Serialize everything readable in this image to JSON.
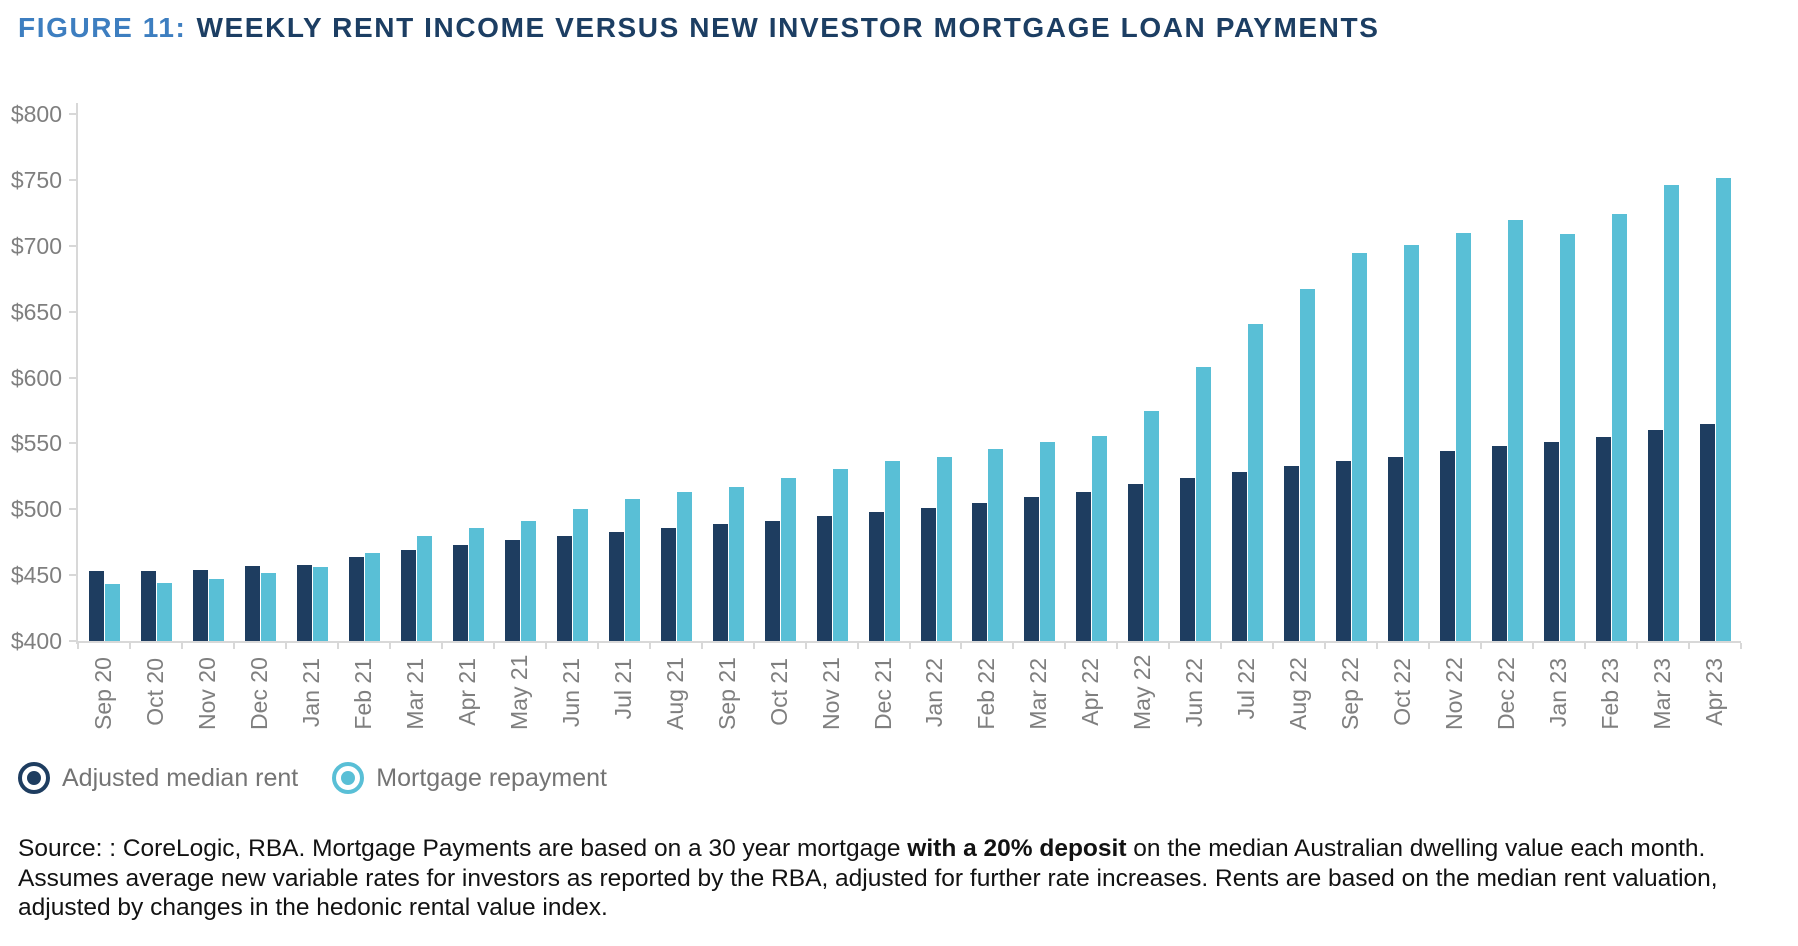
{
  "figure": {
    "label": "FIGURE 11:",
    "title": "WEEKLY RENT INCOME VERSUS NEW INVESTOR MORTGAGE LOAN PAYMENTS"
  },
  "colors": {
    "accent_blue": "#3D7EC0",
    "title_navy": "#1C3E63",
    "rent_navy": "#1E3D60",
    "mortgage_blue": "#59BFD6",
    "axis_text": "#7F7F7F",
    "axis_line": "#D8D8D8"
  },
  "chart_data": {
    "type": "bar",
    "title": "Weekly rent income versus new investor mortgage loan payments",
    "xlabel": "",
    "ylabel": "",
    "ylim": [
      400,
      800
    ],
    "ytick_step": 50,
    "ytick_prefix": "$",
    "grid": false,
    "legend_position": "bottom-left",
    "categories": [
      "Sep 20",
      "Oct 20",
      "Nov 20",
      "Dec 20",
      "Jan 21",
      "Feb 21",
      "Mar 21",
      "Apr 21",
      "May 21",
      "Jun 21",
      "Jul 21",
      "Aug 21",
      "Sep 21",
      "Oct 21",
      "Nov 21",
      "Dec 21",
      "Jan 22",
      "Feb 22",
      "Mar 22",
      "Apr 22",
      "May 22",
      "Jun 22",
      "Jul 22",
      "Aug 22",
      "Sep 22",
      "Oct 22",
      "Nov 22",
      "Dec 22",
      "Jan 23",
      "Feb 23",
      "Mar 23",
      "Apr 23"
    ],
    "series": [
      {
        "name": "Adjusted median rent",
        "color": "#1E3D60",
        "values": [
          453,
          453,
          454,
          457,
          458,
          464,
          469,
          473,
          477,
          480,
          483,
          486,
          489,
          491,
          495,
          498,
          501,
          505,
          509,
          513,
          519,
          524,
          528,
          533,
          537,
          540,
          544,
          548,
          551,
          555,
          560,
          565
        ]
      },
      {
        "name": "Mortgage repayment",
        "color": "#59BFD6",
        "values": [
          443,
          444,
          447,
          452,
          456,
          467,
          480,
          486,
          491,
          500,
          508,
          513,
          517,
          524,
          531,
          537,
          540,
          546,
          551,
          556,
          575,
          608,
          641,
          667,
          695,
          701,
          710,
          720,
          709,
          724,
          746,
          752
        ]
      }
    ]
  },
  "legend": {
    "items": [
      {
        "label": "Adjusted median rent",
        "color": "#1E3D60"
      },
      {
        "label": "Mortgage repayment",
        "color": "#59BFD6"
      }
    ]
  },
  "source": {
    "prefix": "Source: : CoreLogic, RBA. Mortgage Payments are based on a 30 year mortgage ",
    "bold": "with a 20% deposit",
    "suffix": " on the median Australian dwelling value each month. Assumes average new variable rates for investors as reported by the RBA, adjusted for further rate increases. Rents are based on the median rent valuation, adjusted by changes in the hedonic rental value index."
  }
}
